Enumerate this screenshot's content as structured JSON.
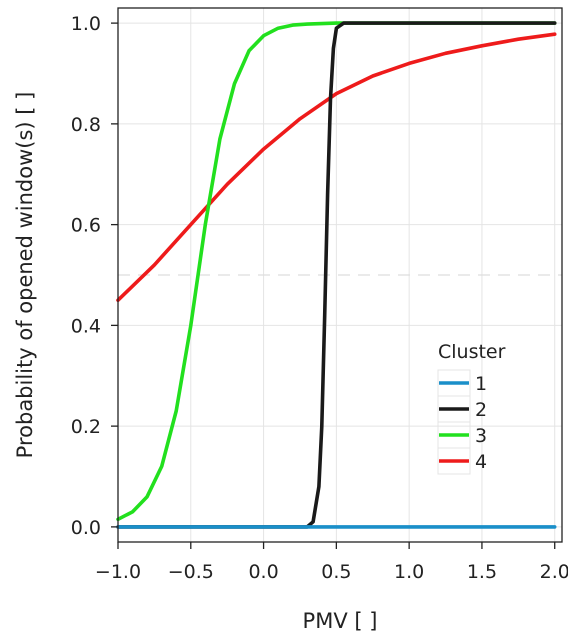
{
  "chart_data": {
    "type": "line",
    "xlabel": "PMV [ ]",
    "ylabel": "Probability of opened window(s) [ ]",
    "xlim": [
      -1.0,
      2.05
    ],
    "ylim": [
      -0.03,
      1.03
    ],
    "xticks": [
      -1.0,
      -0.5,
      0.0,
      0.5,
      1.0,
      1.5,
      2.0
    ],
    "xtick_labels": [
      "−1.0",
      "−0.5",
      "0.0",
      "0.5",
      "1.0",
      "1.5",
      "2.0"
    ],
    "yticks": [
      0.0,
      0.2,
      0.4,
      0.6,
      0.8,
      1.0
    ],
    "ytick_labels": [
      "0.0",
      "0.2",
      "0.4",
      "0.6",
      "0.8",
      "1.0"
    ],
    "grid": true,
    "reference_line_y": 0.5,
    "legend": {
      "title": "Cluster",
      "position": "bottom-right",
      "entries": [
        "1",
        "2",
        "3",
        "4"
      ]
    },
    "series": [
      {
        "name": "1",
        "color": "#1a8fc9",
        "x": [
          -1.0,
          2.0
        ],
        "y": [
          0.0,
          0.0
        ]
      },
      {
        "name": "2",
        "color": "#1a1a1a",
        "x": [
          -1.0,
          0.3,
          0.34,
          0.38,
          0.4,
          0.42,
          0.44,
          0.46,
          0.48,
          0.5,
          0.55,
          2.0
        ],
        "y": [
          0.0,
          0.0,
          0.01,
          0.08,
          0.2,
          0.42,
          0.66,
          0.85,
          0.95,
          0.99,
          1.0,
          1.0
        ]
      },
      {
        "name": "3",
        "color": "#22e01e",
        "x": [
          -1.0,
          -0.9,
          -0.8,
          -0.7,
          -0.6,
          -0.5,
          -0.4,
          -0.3,
          -0.2,
          -0.1,
          0.0,
          0.1,
          0.2,
          0.3,
          0.5,
          1.0,
          2.0
        ],
        "y": [
          0.015,
          0.03,
          0.06,
          0.12,
          0.23,
          0.4,
          0.6,
          0.77,
          0.88,
          0.945,
          0.975,
          0.99,
          0.996,
          0.998,
          1.0,
          1.0,
          1.0
        ]
      },
      {
        "name": "4",
        "color": "#ee1b1b",
        "x": [
          -1.0,
          -0.75,
          -0.5,
          -0.25,
          0.0,
          0.25,
          0.5,
          0.75,
          1.0,
          1.25,
          1.5,
          1.75,
          2.0
        ],
        "y": [
          0.45,
          0.52,
          0.6,
          0.68,
          0.75,
          0.81,
          0.86,
          0.895,
          0.92,
          0.94,
          0.955,
          0.968,
          0.978
        ]
      }
    ]
  }
}
